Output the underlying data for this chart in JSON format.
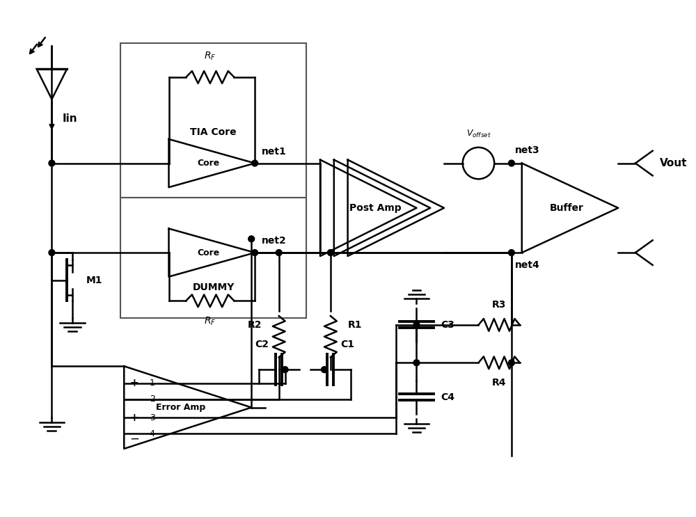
{
  "bg_color": "#ffffff",
  "line_color": "#000000",
  "lw": 1.8,
  "fig_width": 10.0,
  "fig_height": 7.43,
  "xlim": [
    0,
    100
  ],
  "ylim": [
    0,
    74.3
  ]
}
